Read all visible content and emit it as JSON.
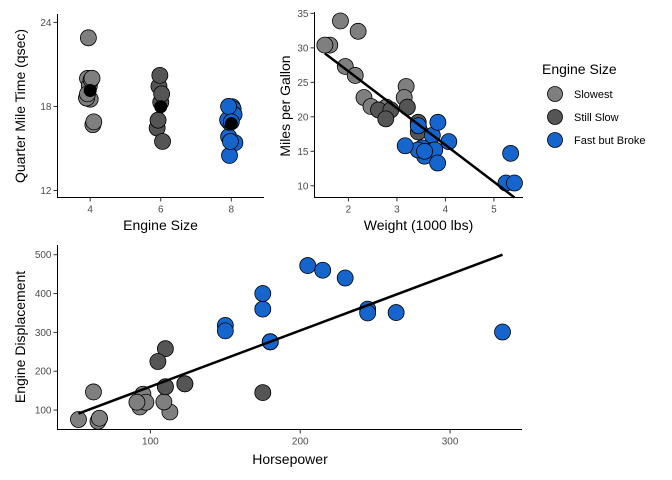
{
  "colors": {
    "Slowest": "#7f7f7f",
    "Still Slow": "#555555",
    "Fast but Broke": "#1565cd",
    "summary_point": "#000000"
  },
  "legend": {
    "title": "Engine Size",
    "items": [
      {
        "label": "Slowest",
        "color": "#7f7f7f"
      },
      {
        "label": "Still Slow",
        "color": "#555555"
      },
      {
        "label": "Fast but Broke",
        "color": "#1565cd"
      }
    ]
  },
  "chart_data": [
    {
      "id": "qsec_by_cyl",
      "type": "scatter",
      "xlabel": "Engine Size",
      "ylabel": "Quarter Mile Time (qsec)",
      "x_categories": [
        "4",
        "6",
        "8"
      ],
      "ylim": [
        11.5,
        24.6
      ],
      "yticks": [
        12,
        18,
        24
      ],
      "series": [
        {
          "name": "Slowest",
          "color": "#7f7f7f",
          "points": [
            [
              4,
              18.61
            ],
            [
              4,
              20.0
            ],
            [
              4,
              22.9
            ],
            [
              4,
              19.47
            ],
            [
              4,
              18.52
            ],
            [
              4,
              19.9
            ],
            [
              4,
              20.01
            ],
            [
              4,
              16.7
            ],
            [
              4,
              16.9
            ],
            [
              4,
              18.6
            ],
            [
              4,
              18.9
            ]
          ]
        },
        {
          "name": "Still Slow",
          "color": "#555555",
          "points": [
            [
              6,
              16.46
            ],
            [
              6,
              17.02
            ],
            [
              6,
              19.44
            ],
            [
              6,
              20.22
            ],
            [
              6,
              18.3
            ],
            [
              6,
              18.9
            ],
            [
              6,
              15.5
            ]
          ]
        },
        {
          "name": "Fast but Broke",
          "color": "#1565cd",
          "points": [
            [
              8,
              17.02
            ],
            [
              8,
              15.84
            ],
            [
              8,
              16.87
            ],
            [
              8,
              17.3
            ],
            [
              8,
              17.4
            ],
            [
              8,
              17.98
            ],
            [
              8,
              17.82
            ],
            [
              8,
              17.42
            ],
            [
              8,
              15.41
            ],
            [
              8,
              17.05
            ],
            [
              8,
              18.0
            ],
            [
              8,
              14.5
            ],
            [
              8,
              15.5
            ],
            [
              8,
              16.9
            ]
          ]
        }
      ],
      "summary": [
        {
          "x": 4,
          "mean": 19.14,
          "lower": 18.6,
          "upper": 19.8
        },
        {
          "x": 6,
          "mean": 17.98,
          "lower": 17.5,
          "upper": 18.6
        },
        {
          "x": 8,
          "mean": 16.77,
          "lower": 16.3,
          "upper": 17.2
        }
      ]
    },
    {
      "id": "mpg_by_wt",
      "type": "scatter",
      "xlabel": "Weight (1000 lbs)",
      "ylabel": "Miles per Gallon",
      "xlim": [
        1.3,
        5.6
      ],
      "ylim": [
        8.3,
        35.2
      ],
      "xticks": [
        2,
        3,
        4,
        5
      ],
      "yticks": [
        10,
        15,
        20,
        25,
        30,
        35
      ],
      "fit_line": {
        "x": [
          1.513,
          5.424
        ],
        "y": [
          29.2,
          8.3
        ]
      },
      "series": [
        {
          "name": "Slowest",
          "color": "#7f7f7f",
          "points": [
            [
              2.32,
              22.8
            ],
            [
              3.19,
              24.4
            ],
            [
              3.15,
              22.8
            ],
            [
              2.2,
              32.4
            ],
            [
              1.615,
              30.4
            ],
            [
              1.835,
              33.9
            ],
            [
              2.465,
              21.5
            ],
            [
              1.935,
              27.3
            ],
            [
              2.14,
              26.0
            ],
            [
              1.513,
              30.4
            ],
            [
              2.78,
              21.4
            ]
          ]
        },
        {
          "name": "Still Slow",
          "color": "#555555",
          "points": [
            [
              2.62,
              21.0
            ],
            [
              2.875,
              21.0
            ],
            [
              3.215,
              21.4
            ],
            [
              3.46,
              18.1
            ],
            [
              3.44,
              19.2
            ],
            [
              3.44,
              17.8
            ],
            [
              2.77,
              19.7
            ]
          ]
        },
        {
          "name": "Fast but Broke",
          "color": "#1565cd",
          "points": [
            [
              3.44,
              18.7
            ],
            [
              3.57,
              14.3
            ],
            [
              4.07,
              16.4
            ],
            [
              3.73,
              17.3
            ],
            [
              3.78,
              15.2
            ],
            [
              5.25,
              10.4
            ],
            [
              5.424,
              10.4
            ],
            [
              5.345,
              14.7
            ],
            [
              3.52,
              15.5
            ],
            [
              3.435,
              15.2
            ],
            [
              3.84,
              13.3
            ],
            [
              3.845,
              19.2
            ],
            [
              3.17,
              15.8
            ],
            [
              3.57,
              15.0
            ]
          ]
        }
      ]
    },
    {
      "id": "disp_by_hp",
      "type": "scatter",
      "xlabel": "Horsepower",
      "ylabel": "Engine Displacement",
      "xlim": [
        38,
        348
      ],
      "ylim": [
        50,
        525
      ],
      "xticks": [
        100,
        200,
        300
      ],
      "yticks": [
        100,
        200,
        300,
        400,
        500
      ],
      "fit_line": {
        "x": [
          52,
          335
        ],
        "y": [
          91,
          500
        ]
      },
      "series": [
        {
          "name": "Slowest",
          "color": "#7f7f7f",
          "points": [
            [
              93,
              108
            ],
            [
              62,
              146.7
            ],
            [
              95,
              140.8
            ],
            [
              66,
              78.7
            ],
            [
              52,
              75.7
            ],
            [
              65,
              71.1
            ],
            [
              97,
              120.1
            ],
            [
              66,
              79
            ],
            [
              91,
              120.3
            ],
            [
              113,
              95.1
            ],
            [
              109,
              121
            ]
          ]
        },
        {
          "name": "Still Slow",
          "color": "#555555",
          "points": [
            [
              110,
              160
            ],
            [
              110,
              160
            ],
            [
              110,
              258
            ],
            [
              105,
              225
            ],
            [
              123,
              167.6
            ],
            [
              123,
              167.6
            ],
            [
              175,
              145
            ]
          ]
        },
        {
          "name": "Fast but Broke",
          "color": "#1565cd",
          "points": [
            [
              175,
              360
            ],
            [
              245,
              360
            ],
            [
              180,
              275.8
            ],
            [
              180,
              275.8
            ],
            [
              180,
              275.8
            ],
            [
              205,
              472
            ],
            [
              215,
              460
            ],
            [
              230,
              440
            ],
            [
              150,
              318
            ],
            [
              150,
              304
            ],
            [
              245,
              350
            ],
            [
              175,
              400
            ],
            [
              264,
              351
            ],
            [
              335,
              301
            ]
          ]
        }
      ]
    }
  ]
}
